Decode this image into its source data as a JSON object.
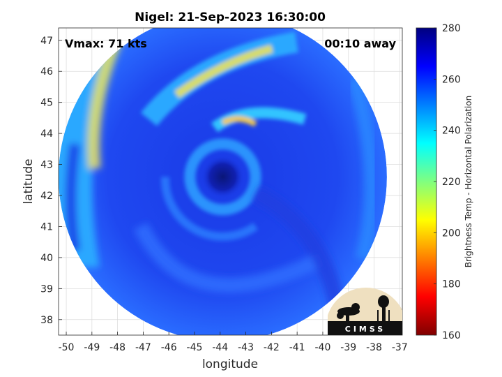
{
  "chart_data": {
    "type": "heatmap",
    "title": "Nigel: 21-Sep-2023 16:30:00",
    "xlabel": "longitude",
    "ylabel": "latitude",
    "xlim": [
      -50.3,
      -36.9
    ],
    "ylim": [
      37.5,
      47.4
    ],
    "xticks": [
      -50,
      -49,
      -48,
      -47,
      -46,
      -45,
      -44,
      -43,
      -42,
      -41,
      -40,
      -39,
      -38,
      -37
    ],
    "yticks": [
      38,
      39,
      40,
      41,
      42,
      43,
      44,
      45,
      46,
      47
    ],
    "grid": true,
    "annotations": {
      "vmax": "Vmax: 71 kts",
      "time_away": "00:10 away"
    },
    "storm_center": {
      "lon": -43.9,
      "lat": 42.6
    },
    "swath_radius_deg_lon": 6.4,
    "colorbar": {
      "label": "Brightness Temp - Horizontal Polarization",
      "range": [
        160,
        280
      ],
      "ticks": [
        160,
        180,
        200,
        220,
        240,
        260,
        280
      ],
      "colormap": "jet"
    },
    "logo_text": "CIMSS"
  },
  "colors": {
    "background": "#ffffff",
    "grid": "#d9d9d9",
    "axis": "#262626",
    "eye": "#0a1e8c",
    "deep_blue": "#1230d8",
    "cold_cyan": "#2aa8ff",
    "warm_yellow": "#e8e060"
  }
}
